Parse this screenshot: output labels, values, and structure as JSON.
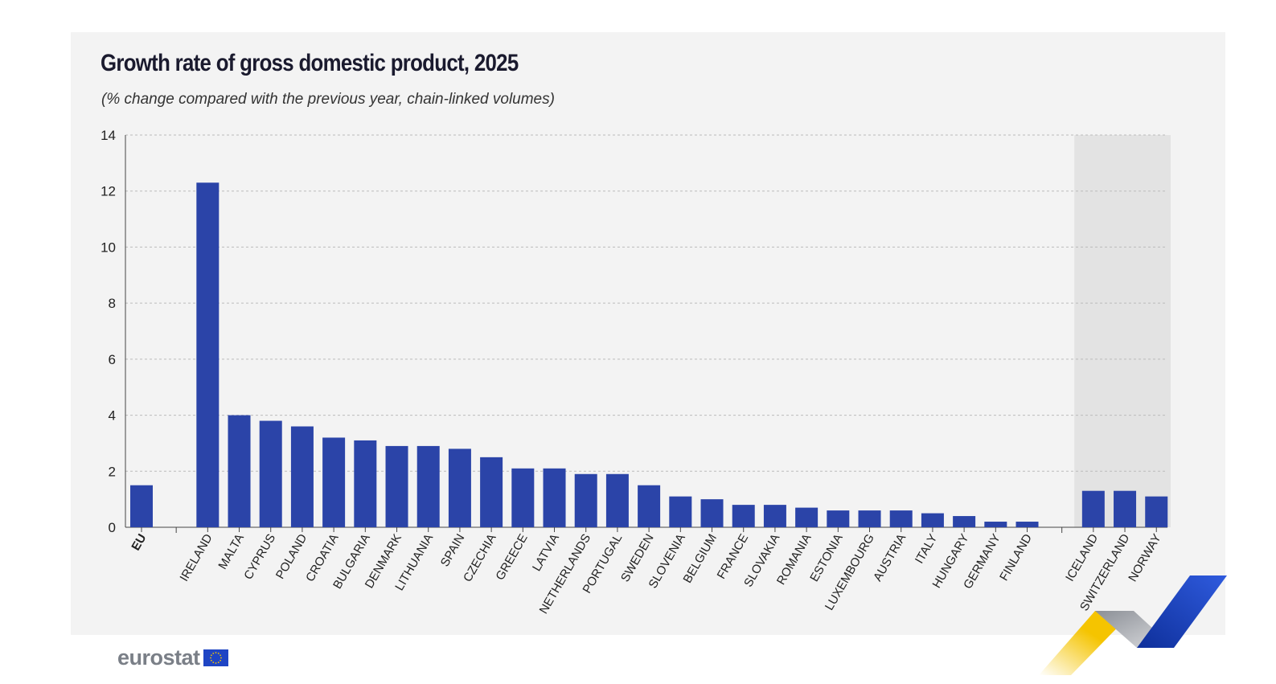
{
  "title": "Growth rate of gross domestic product, 2025",
  "subtitle": "(% change compared with the previous year, chain-linked volumes)",
  "logo_text": "eurostat",
  "colors": {
    "bar": "#2b44a8",
    "panel_bg": "#f3f3f3",
    "highlight_bg": "#e3e3e3",
    "grid": "#bbbbbb",
    "brand_yellow": "#f5c400",
    "brand_blue": "#1f45c4",
    "brand_grey": "#b9bcc2"
  },
  "chart_data": {
    "type": "bar",
    "ylim": [
      0,
      14
    ],
    "yticks": [
      0,
      2,
      4,
      6,
      8,
      10,
      12,
      14
    ],
    "grid": true,
    "groups": [
      {
        "name": "eu",
        "highlight": false,
        "categories": [
          "EU"
        ],
        "values": [
          1.5
        ],
        "bold": true
      },
      {
        "name": "member-states",
        "highlight": false,
        "categories": [
          "IRELAND",
          "MALTA",
          "CYPRUS",
          "POLAND",
          "CROATIA",
          "BULGARIA",
          "DENMARK",
          "LITHUANIA",
          "SPAIN",
          "CZECHIA",
          "GREECE",
          "LATVIA",
          "NETHERLANDS",
          "PORTUGAL",
          "SWEDEN",
          "SLOVENIA",
          "BELGIUM",
          "FRANCE",
          "SLOVAKIA",
          "ROMANIA",
          "ESTONIA",
          "LUXEMBOURG",
          "AUSTRIA",
          "ITALY",
          "HUNGARY",
          "GERMANY",
          "FINLAND"
        ],
        "values": [
          12.3,
          4.0,
          3.8,
          3.6,
          3.2,
          3.1,
          2.9,
          2.9,
          2.8,
          2.5,
          2.1,
          2.1,
          1.9,
          1.9,
          1.5,
          1.1,
          1.0,
          0.8,
          0.8,
          0.7,
          0.6,
          0.6,
          0.6,
          0.5,
          0.4,
          0.2,
          0.2
        ]
      },
      {
        "name": "efta",
        "highlight": true,
        "categories": [
          "ICELAND",
          "SWITZERLAND",
          "NORWAY"
        ],
        "values": [
          1.3,
          1.3,
          1.1
        ]
      }
    ]
  }
}
